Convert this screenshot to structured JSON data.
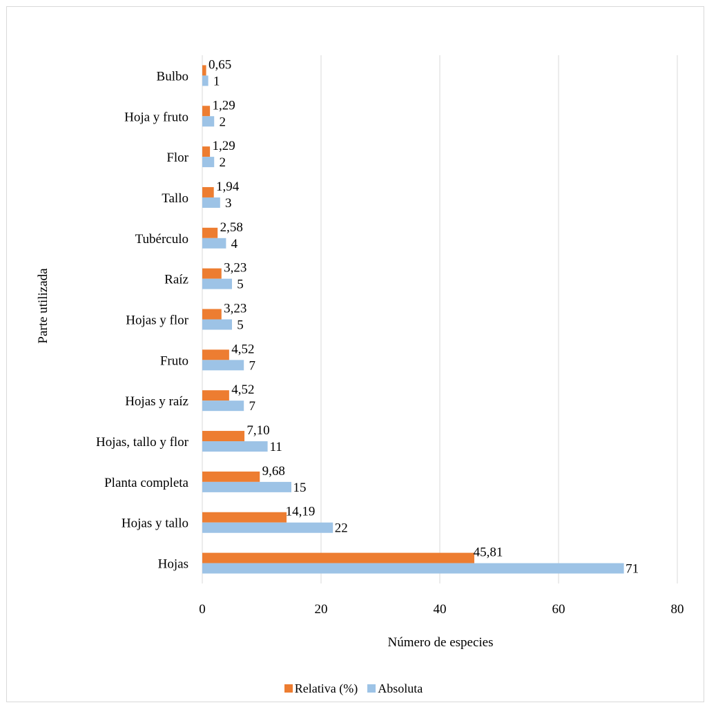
{
  "chart_data": {
    "type": "bar",
    "orientation": "horizontal",
    "categories": [
      "Hojas",
      "Hojas y tallo",
      "Planta completa",
      "Hojas, tallo y flor",
      "Hojas y raíz",
      "Fruto",
      "Hojas y flor",
      "Raíz",
      "Tubérculo",
      "Tallo",
      "Flor",
      "Hoja y fruto",
      "Bulbo"
    ],
    "series": [
      {
        "name": "Relativa (%)",
        "color": "#ED7D31",
        "values": [
          45.81,
          14.19,
          9.68,
          7.1,
          4.52,
          4.52,
          3.23,
          3.23,
          2.58,
          1.94,
          1.29,
          1.29,
          0.65
        ],
        "labels": [
          "45,81",
          "14,19",
          "9,68",
          "7,10",
          "4,52",
          "4,52",
          "3,23",
          "3,23",
          "2,58",
          "1,94",
          "1,29",
          "1,29",
          "0,65"
        ]
      },
      {
        "name": "Absoluta",
        "color": "#9DC3E6",
        "values": [
          71,
          22,
          15,
          11,
          7,
          7,
          5,
          5,
          4,
          3,
          2,
          2,
          1
        ],
        "labels": [
          "71",
          "22",
          "15",
          "11",
          "7",
          "7",
          "5",
          "5",
          "4",
          "3",
          "2",
          "2",
          "1"
        ]
      }
    ],
    "xlabel": "Número de especies",
    "ylabel": "Parte utilizada",
    "xlim": [
      0,
      80
    ],
    "xticks": [
      0,
      20,
      40,
      60,
      80
    ],
    "grid": true,
    "legend_position": "bottom"
  }
}
